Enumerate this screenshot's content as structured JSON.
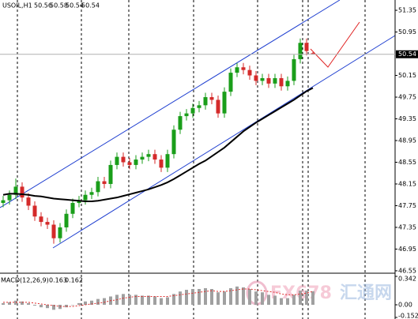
{
  "chart_data": {
    "type": "candlestick",
    "symbol": "USOIL,H1",
    "up_color": "#1a9e1a",
    "down_color": "#d42a2a",
    "ma_color": "#000000",
    "open": [
      47.8,
      47.85,
      47.95,
      48.1,
      47.9,
      47.75,
      47.55,
      47.45,
      47.4,
      47.15,
      47.35,
      47.6,
      47.8,
      47.85,
      47.95,
      48.0,
      48.2,
      48.15,
      48.5,
      48.65,
      48.55,
      48.5,
      48.6,
      48.65,
      48.7,
      48.6,
      48.45,
      48.7,
      49.15,
      49.4,
      49.45,
      49.55,
      49.6,
      49.75,
      49.7,
      49.45,
      49.85,
      50.2,
      50.3,
      50.25,
      50.15,
      50.05,
      50.1,
      50.0,
      50.1,
      49.95,
      50.05,
      50.45,
      50.75,
      50.56
    ],
    "high": [
      47.93,
      48.03,
      48.25,
      48.18,
      47.98,
      47.83,
      47.63,
      47.53,
      47.48,
      47.43,
      47.68,
      47.88,
      47.93,
      48.03,
      48.08,
      48.28,
      48.28,
      48.58,
      48.73,
      48.73,
      48.63,
      48.68,
      48.73,
      48.78,
      48.78,
      48.68,
      48.78,
      49.23,
      49.48,
      49.53,
      49.63,
      49.68,
      49.83,
      49.83,
      49.78,
      49.93,
      50.28,
      50.38,
      50.38,
      50.33,
      50.23,
      50.18,
      50.18,
      50.18,
      50.18,
      50.13,
      50.53,
      50.83,
      50.83,
      50.58
    ],
    "low": [
      47.72,
      47.77,
      47.87,
      47.82,
      47.67,
      47.47,
      47.37,
      47.32,
      47.05,
      47.07,
      47.27,
      47.52,
      47.72,
      47.77,
      47.87,
      47.92,
      48.07,
      48.07,
      48.42,
      48.47,
      48.42,
      48.42,
      48.52,
      48.57,
      48.52,
      48.37,
      48.37,
      48.62,
      49.07,
      49.32,
      49.37,
      49.47,
      49.52,
      49.62,
      49.37,
      49.37,
      49.77,
      50.12,
      50.17,
      50.07,
      49.97,
      49.97,
      49.92,
      49.92,
      49.87,
      49.87,
      49.97,
      50.37,
      50.52,
      50.54
    ],
    "close": [
      47.85,
      47.95,
      48.1,
      47.9,
      47.75,
      47.55,
      47.45,
      47.4,
      47.15,
      47.35,
      47.6,
      47.8,
      47.85,
      47.95,
      48.0,
      48.2,
      48.15,
      48.5,
      48.65,
      48.55,
      48.5,
      48.6,
      48.65,
      48.7,
      48.6,
      48.45,
      48.7,
      49.15,
      49.4,
      49.45,
      49.55,
      49.6,
      49.75,
      49.7,
      49.45,
      49.85,
      50.2,
      50.3,
      50.25,
      50.15,
      50.05,
      50.1,
      50.0,
      50.1,
      49.95,
      50.05,
      50.45,
      50.75,
      50.6,
      50.54
    ],
    "moving_average": [
      47.95,
      47.97,
      47.97,
      47.96,
      47.95,
      47.93,
      47.92,
      47.9,
      47.88,
      47.87,
      47.86,
      47.85,
      47.84,
      47.83,
      47.83,
      47.84,
      47.86,
      47.88,
      47.9,
      47.93,
      47.96,
      47.99,
      48.02,
      48.05,
      48.09,
      48.13,
      48.18,
      48.24,
      48.31,
      48.38,
      48.45,
      48.52,
      48.58,
      48.66,
      48.74,
      48.82,
      48.92,
      49.02,
      49.12,
      49.2,
      49.28,
      49.35,
      49.42,
      49.49,
      49.56,
      49.63,
      49.7,
      49.78,
      49.86,
      49.92
    ],
    "ylim": [
      46.52,
      51.54
    ],
    "yticks": [
      51.35,
      50.95,
      50.15,
      49.75,
      49.35,
      48.95,
      48.55,
      48.15,
      47.75,
      47.35,
      46.95,
      46.55
    ],
    "macd": {
      "title": "MACD(12,26,9)",
      "histogram_color": "#a0a0a0",
      "signal_color": "#e03030",
      "histogram": [
        0.02,
        0.03,
        0.05,
        0.04,
        0.02,
        -0.01,
        -0.03,
        -0.04,
        -0.06,
        -0.05,
        -0.03,
        0.0,
        0.02,
        0.04,
        0.05,
        0.07,
        0.08,
        0.1,
        0.12,
        0.13,
        0.12,
        0.12,
        0.11,
        0.11,
        0.1,
        0.08,
        0.09,
        0.13,
        0.16,
        0.18,
        0.19,
        0.19,
        0.2,
        0.19,
        0.15,
        0.16,
        0.2,
        0.22,
        0.21,
        0.19,
        0.16,
        0.15,
        0.12,
        0.11,
        0.08,
        0.08,
        0.12,
        0.17,
        0.17,
        0.163
      ],
      "signal": [
        0.03,
        0.03,
        0.03,
        0.03,
        0.03,
        0.02,
        0.01,
        0.0,
        -0.01,
        -0.02,
        -0.02,
        -0.02,
        -0.01,
        0.0,
        0.01,
        0.02,
        0.03,
        0.05,
        0.06,
        0.08,
        0.09,
        0.1,
        0.1,
        0.1,
        0.1,
        0.1,
        0.1,
        0.11,
        0.12,
        0.13,
        0.14,
        0.15,
        0.16,
        0.17,
        0.16,
        0.16,
        0.17,
        0.18,
        0.19,
        0.19,
        0.18,
        0.17,
        0.16,
        0.15,
        0.13,
        0.12,
        0.12,
        0.13,
        0.14,
        0.162
      ],
      "ylim": [
        -0.152,
        0.342
      ],
      "yticks": [
        0.342,
        {
          "value": 0,
          "label": "0.00"
        },
        -0.152
      ]
    },
    "watermark": {
      "brand": "FX678",
      "name": "汇通网"
    }
  }
}
